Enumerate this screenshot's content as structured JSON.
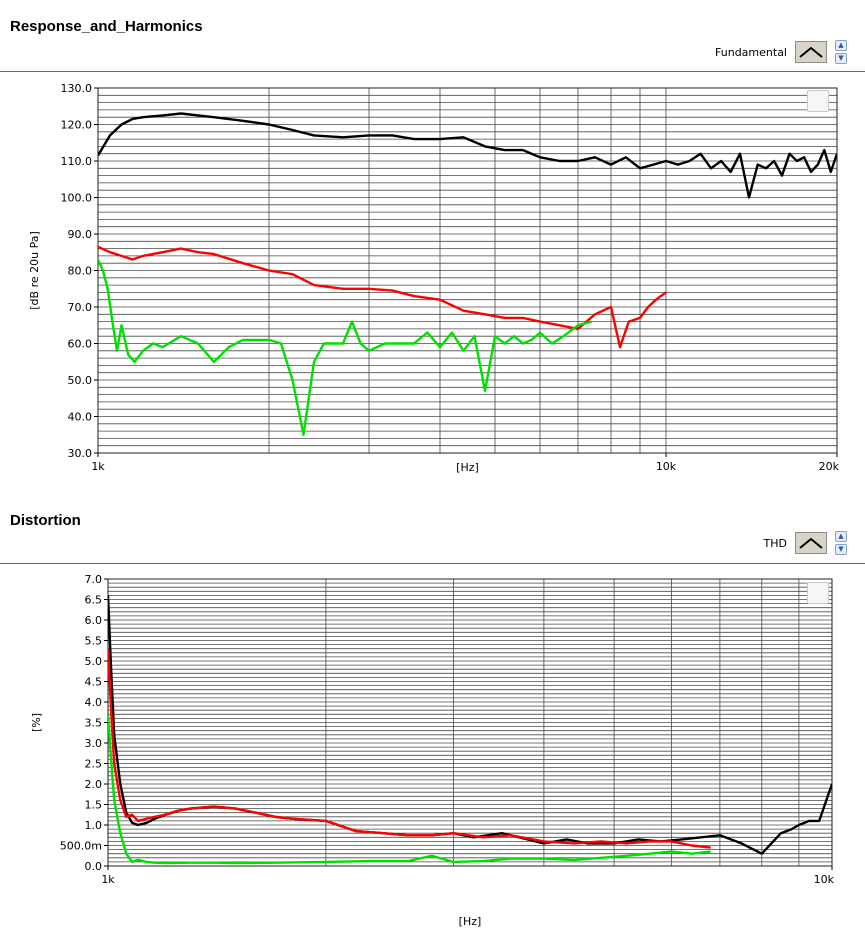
{
  "panels": [
    {
      "title": "Response_and_Harmonics",
      "legend_label": "Fundamental",
      "chart_data": {
        "type": "line",
        "xscale": "log",
        "xlim": [
          1000,
          20000
        ],
        "ylim": [
          30,
          130
        ],
        "xlabel": "[Hz]",
        "ylabel": "[dB re 20u Pa]",
        "xticks": [
          "1k",
          "10k",
          "20k"
        ],
        "yticks": [
          "30.0",
          "40.0",
          "50.0",
          "60.0",
          "70.0",
          "80.0",
          "90.0",
          "100.0",
          "110.0",
          "120.0",
          "130.0"
        ],
        "grid": true,
        "series": [
          {
            "color": "#000000",
            "x": [
              1000,
              1050,
              1100,
              1150,
              1200,
              1300,
              1400,
              1500,
              1600,
              1800,
              2000,
              2200,
              2400,
              2700,
              3000,
              3300,
              3600,
              4000,
              4400,
              4800,
              5200,
              5600,
              6000,
              6500,
              7000,
              7500,
              8000,
              8500,
              9000,
              9500,
              10000,
              10500,
              11000,
              11500,
              12000,
              12500,
              13000,
              13500,
              14000,
              14500,
              15000,
              15500,
              16000,
              16500,
              17000,
              17500,
              18000,
              18500,
              19000,
              19500,
              20000
            ],
            "y": [
              111.5,
              117,
              120,
              121.5,
              122,
              122.5,
              123,
              122.5,
              122,
              121,
              120,
              118.5,
              117,
              116.5,
              117,
              117,
              116,
              116,
              116.5,
              114,
              113,
              113,
              111,
              110,
              110,
              111,
              109,
              111,
              108,
              109,
              110,
              109,
              110,
              112,
              108,
              110,
              107,
              112,
              100,
              109,
              108,
              110,
              106,
              112,
              110,
              111,
              107,
              109,
              113,
              107,
              112
            ]
          },
          {
            "color": "#ff0000",
            "x": [
              1000,
              1050,
              1100,
              1150,
              1200,
              1300,
              1400,
              1500,
              1600,
              1800,
              2000,
              2200,
              2400,
              2700,
              3000,
              3300,
              3600,
              4000,
              4400,
              4800,
              5200,
              5600,
              6000,
              6500,
              7000,
              7500,
              8000,
              8300,
              8600,
              9000,
              9300,
              9600,
              10000
            ],
            "y": [
              86.5,
              85,
              84,
              83,
              84,
              85,
              86,
              85,
              84.5,
              82,
              80,
              79,
              76,
              75,
              75,
              74.5,
              73,
              72,
              69,
              68,
              67,
              67,
              66,
              65,
              64,
              68,
              70,
              59,
              66,
              67,
              70,
              72,
              74
            ]
          },
          {
            "color": "#00e000",
            "x": [
              1000,
              1020,
              1040,
              1060,
              1080,
              1100,
              1130,
              1160,
              1200,
              1250,
              1300,
              1400,
              1500,
              1600,
              1700,
              1800,
              1900,
              2000,
              2100,
              2200,
              2300,
              2400,
              2500,
              2600,
              2700,
              2800,
              2900,
              3000,
              3200,
              3400,
              3600,
              3800,
              4000,
              4200,
              4400,
              4600,
              4800,
              5000,
              5200,
              5400,
              5600,
              5800,
              6000,
              6300,
              6600,
              7000,
              7400
            ],
            "y": [
              83,
              80,
              75,
              66,
              58,
              65,
              57,
              55,
              58,
              60,
              59,
              62,
              60,
              55,
              59,
              61,
              61,
              61,
              60,
              50,
              35,
              55,
              60,
              60,
              60,
              66,
              60,
              58,
              60,
              60,
              60,
              63,
              59,
              63,
              58,
              62,
              47,
              62,
              60,
              62,
              60,
              61,
              63,
              60,
              62,
              65,
              66
            ]
          }
        ]
      }
    },
    {
      "title": "Distortion",
      "legend_label": "THD",
      "chart_data": {
        "type": "line",
        "xscale": "log",
        "xlim": [
          1000,
          10000
        ],
        "ylim": [
          0,
          7
        ],
        "xlabel": "[Hz]",
        "ylabel": "[%]",
        "xticks": [
          "1k",
          "10k"
        ],
        "yticks": [
          "0.0",
          "500.0m",
          "1.0",
          "1.5",
          "2.0",
          "2.5",
          "3.0",
          "3.5",
          "4.0",
          "4.5",
          "5.0",
          "5.5",
          "6.0",
          "6.5",
          "7.0"
        ],
        "grid": true,
        "series": [
          {
            "color": "#000000",
            "x": [
              1000,
              1010,
              1020,
              1040,
              1060,
              1080,
              1100,
              1130,
              1160,
              1200,
              1250,
              1300,
              1400,
              1500,
              1600,
              1700,
              1800,
              2000,
              2200,
              2400,
              2600,
              2800,
              3000,
              3200,
              3500,
              3800,
              4000,
              4300,
              4600,
              5000,
              5400,
              5800,
              6200,
              6600,
              7000,
              7500,
              8000,
              8500,
              8800,
              9000,
              9300,
              9600,
              10000
            ],
            "y": [
              6.6,
              4.8,
              3.2,
              2.0,
              1.3,
              1.05,
              1.0,
              1.05,
              1.15,
              1.25,
              1.35,
              1.4,
              1.45,
              1.4,
              1.3,
              1.2,
              1.15,
              1.1,
              0.85,
              0.8,
              0.75,
              0.75,
              0.8,
              0.7,
              0.8,
              0.65,
              0.55,
              0.65,
              0.55,
              0.55,
              0.65,
              0.6,
              0.65,
              0.7,
              0.75,
              0.55,
              0.3,
              0.8,
              0.9,
              1.0,
              1.1,
              1.1,
              2.0
            ]
          },
          {
            "color": "#ff0000",
            "x": [
              1000,
              1010,
              1020,
              1040,
              1060,
              1080,
              1100,
              1130,
              1160,
              1200,
              1250,
              1300,
              1400,
              1500,
              1600,
              1700,
              1800,
              2000,
              2200,
              2400,
              2600,
              2800,
              3000,
              3300,
              3600,
              4000,
              4400,
              4800,
              5200,
              5600,
              6000,
              6400,
              6800
            ],
            "y": [
              5.3,
              3.8,
              2.5,
              1.6,
              1.2,
              1.25,
              1.1,
              1.15,
              1.2,
              1.25,
              1.35,
              1.4,
              1.45,
              1.4,
              1.3,
              1.2,
              1.15,
              1.1,
              0.85,
              0.8,
              0.75,
              0.75,
              0.8,
              0.7,
              0.75,
              0.6,
              0.55,
              0.6,
              0.55,
              0.6,
              0.6,
              0.5,
              0.45
            ]
          },
          {
            "color": "#00e000",
            "x": [
              1000,
              1010,
              1020,
              1040,
              1060,
              1080,
              1100,
              1130,
              1160,
              1200,
              1300,
              1400,
              1500,
              1700,
              2000,
              2300,
              2600,
              2800,
              3000,
              3300,
              3600,
              4000,
              4400,
              4800,
              5200,
              5600,
              6000,
              6400,
              6800
            ],
            "y": [
              3.7,
              2.6,
              1.6,
              0.8,
              0.3,
              0.1,
              0.15,
              0.1,
              0.08,
              0.07,
              0.08,
              0.08,
              0.07,
              0.08,
              0.1,
              0.12,
              0.12,
              0.25,
              0.1,
              0.12,
              0.18,
              0.18,
              0.15,
              0.2,
              0.25,
              0.3,
              0.35,
              0.3,
              0.35
            ]
          }
        ]
      }
    }
  ]
}
